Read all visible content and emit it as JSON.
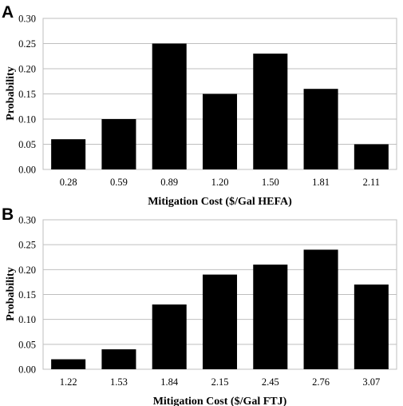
{
  "chart_data": [
    {
      "type": "bar",
      "panel": "A",
      "categories": [
        "0.28",
        "0.59",
        "0.89",
        "1.20",
        "1.50",
        "1.81",
        "2.11"
      ],
      "values": [
        0.06,
        0.1,
        0.25,
        0.15,
        0.23,
        0.16,
        0.05
      ],
      "xlabel": "Mitigation Cost ($/Gal HEFA)",
      "ylabel": "Probability",
      "ylim": [
        0,
        0.3
      ],
      "yticks": [
        "0.00",
        "0.05",
        "0.10",
        "0.15",
        "0.20",
        "0.25",
        "0.30"
      ],
      "grid": "horizontal",
      "bar_color": "#000000"
    },
    {
      "type": "bar",
      "panel": "B",
      "categories": [
        "1.22",
        "1.53",
        "1.84",
        "2.15",
        "2.45",
        "2.76",
        "3.07"
      ],
      "values": [
        0.02,
        0.04,
        0.13,
        0.19,
        0.21,
        0.24,
        0.17
      ],
      "xlabel": "Mitigation Cost ($/Gal FTJ)",
      "ylabel": "Probability",
      "ylim": [
        0,
        0.3
      ],
      "yticks": [
        "0.00",
        "0.05",
        "0.10",
        "0.15",
        "0.20",
        "0.25",
        "0.30"
      ],
      "grid": "horizontal",
      "bar_color": "#000000"
    }
  ]
}
